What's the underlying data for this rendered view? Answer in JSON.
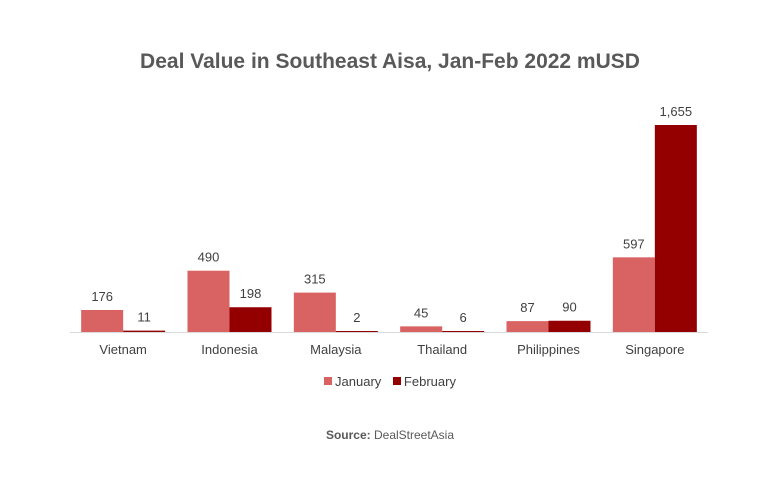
{
  "chart_data": {
    "type": "bar",
    "title": "Deal Value in Southeast Aisa, Jan-Feb 2022 mUSD",
    "categories": [
      "Vietnam",
      "Indonesia",
      "Malaysia",
      "Thailand",
      "Philippines",
      "Singapore"
    ],
    "series": [
      {
        "name": "January",
        "values": [
          176,
          490,
          315,
          45,
          87,
          597
        ],
        "color": "#d96262"
      },
      {
        "name": "February",
        "values": [
          11,
          198,
          2,
          6,
          90,
          1655
        ],
        "color": "#940000"
      }
    ],
    "data_labels": [
      [
        "176",
        "490",
        "315",
        "45",
        "87",
        "597"
      ],
      [
        "11",
        "198",
        "2",
        "6",
        "90",
        "1,655"
      ]
    ],
    "ylim": [
      0,
      1700
    ],
    "grid": false,
    "legend_position": "bottom"
  },
  "source_label": "Source:",
  "source_value": "DealStreetAsia"
}
